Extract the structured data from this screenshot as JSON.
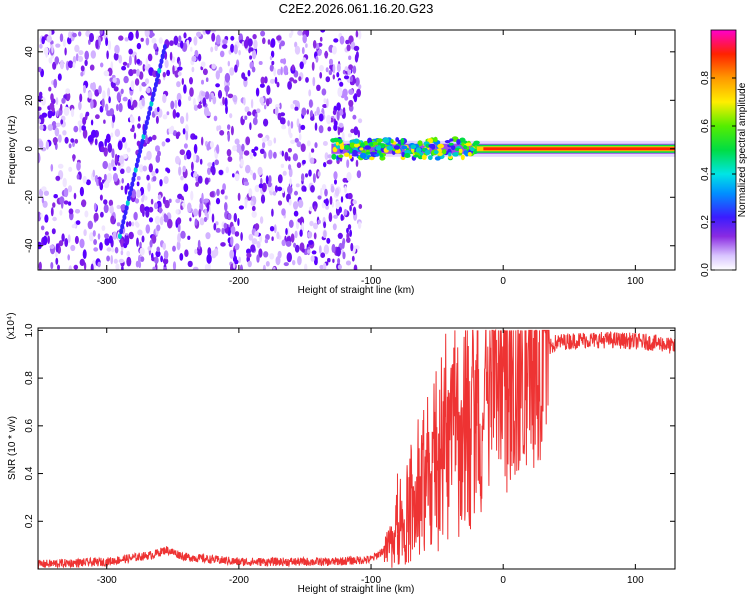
{
  "title": "C2E2.2026.061.16.20.G23",
  "chart_data": [
    {
      "type": "heatmap",
      "name": "spectrogram",
      "xlabel": "Height of straight line (km)",
      "ylabel": "Frequency (Hz)",
      "xlim": [
        -352,
        130
      ],
      "ylim": [
        -50,
        49
      ],
      "xticks": [
        -300,
        -200,
        -100,
        0,
        100
      ],
      "yticks": [
        -40,
        -20,
        0,
        20,
        40
      ],
      "noise_region_x": [
        -352,
        -108
      ],
      "signal_band": {
        "x_start": -130,
        "x_end": 130,
        "frequency_hz": 0
      },
      "stripe_line": {
        "x": [
          -290,
          -256
        ],
        "y": [
          -36,
          42
        ]
      },
      "colorbar": {
        "label": "Normalized spectral amplitude",
        "range": [
          0.0,
          1.0
        ],
        "ticks": [
          0.0,
          0.2,
          0.4,
          0.6,
          0.8
        ]
      }
    },
    {
      "type": "line",
      "name": "snr",
      "xlabel": "Height of straight line (km)",
      "ylabel": "SNR (10 * v/v)",
      "multiplier_label": "(x10⁴)",
      "xlim": [
        -352,
        130
      ],
      "ylim": [
        0,
        1.01
      ],
      "xticks": [
        -300,
        -200,
        -100,
        0,
        100
      ],
      "yticks": [
        0.2,
        0.4,
        0.6,
        0.8,
        1.0
      ],
      "color": "#ee3333",
      "trend": {
        "x": [
          -352,
          -300,
          -265,
          -255,
          -240,
          -200,
          -130,
          -100,
          -85,
          -80,
          -70,
          -60,
          -50,
          -40,
          -30,
          -20,
          -10,
          0,
          10,
          20,
          30,
          40,
          60,
          80,
          100,
          120,
          130
        ],
        "y": [
          0.02,
          0.03,
          0.06,
          0.08,
          0.05,
          0.03,
          0.03,
          0.04,
          0.1,
          0.15,
          0.22,
          0.3,
          0.38,
          0.48,
          0.56,
          0.6,
          0.65,
          0.7,
          0.75,
          0.82,
          0.9,
          0.95,
          0.96,
          0.96,
          0.955,
          0.945,
          0.93
        ]
      },
      "spikes": [
        {
          "x": -80,
          "y": 0.4
        },
        {
          "x": -52,
          "y": 0.58
        },
        {
          "x": -42,
          "y": 0.65
        },
        {
          "x": -28,
          "y": 0.8
        },
        {
          "x": -20,
          "y": 0.9
        },
        {
          "x": -5,
          "y": 0.96
        },
        {
          "x": 5,
          "y": 0.95
        }
      ]
    }
  ]
}
